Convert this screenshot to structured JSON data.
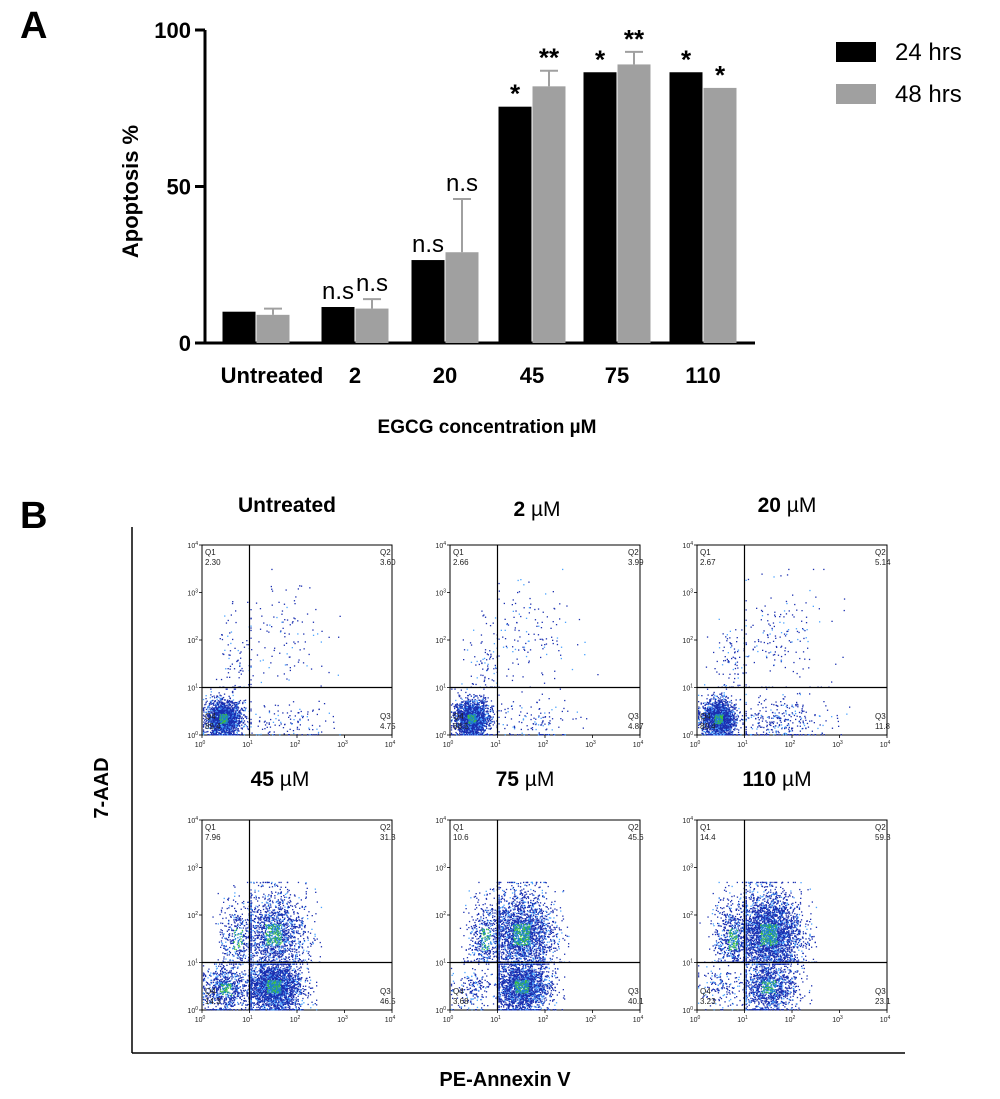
{
  "panels": {
    "a": "A",
    "b": "B"
  },
  "chart_data": [
    {
      "type": "bar",
      "title": "",
      "xlabel": "EGCG concentration µM",
      "ylabel": "Apoptosis %",
      "ylim": [
        0,
        100
      ],
      "yticks": [
        "0",
        "50",
        "100"
      ],
      "categories": [
        "Untreated",
        "2",
        "20",
        "45",
        "75",
        "110"
      ],
      "series": [
        {
          "name": "24 hrs",
          "color": "#000000",
          "values": [
            10,
            11.5,
            26.5,
            75.5,
            86.5,
            86.5
          ],
          "errors": [
            0,
            0,
            0,
            0,
            0,
            0
          ],
          "significance": [
            "",
            "n.s",
            "n.s",
            "*",
            "*",
            "*"
          ]
        },
        {
          "name": "48 hrs",
          "color": "#a0a0a0",
          "values": [
            9,
            11,
            29,
            82,
            89,
            81.5
          ],
          "errors": [
            2,
            3,
            17,
            5,
            4,
            0
          ],
          "significance": [
            "",
            "n.s",
            "n.s",
            "**",
            "**",
            "*"
          ]
        }
      ],
      "legend": "top-right"
    },
    {
      "type": "scatter",
      "xlabel": "PE-Annexin V",
      "ylabel": "7-AAD",
      "scale": "log",
      "axis_ticks": [
        "10",
        "10",
        "10",
        "10",
        "10"
      ],
      "axis_exponents": [
        "0",
        "1",
        "2",
        "3",
        "4"
      ],
      "plots": [
        {
          "title_num": "",
          "title_unit": "",
          "title_full": "Untreated",
          "bold_unit": false,
          "quadrants": {
            "Q1": "2.30",
            "Q2": "3.60",
            "Q3": "4.75",
            "Q4": "89.4"
          }
        },
        {
          "title_num": "2",
          "title_unit": " µM",
          "title_full": "",
          "bold_unit": false,
          "quadrants": {
            "Q1": "2.66",
            "Q2": "3.99",
            "Q3": "4.87",
            "Q4": "88.5"
          }
        },
        {
          "title_num": "20",
          "title_unit": " µM",
          "title_full": "",
          "bold_unit": false,
          "quadrants": {
            "Q1": "2.67",
            "Q2": "5.14",
            "Q3": "11.8",
            "Q4": "80.4"
          }
        },
        {
          "title_num": "45",
          "title_unit": " µM",
          "title_full": "",
          "bold_unit": false,
          "quadrants": {
            "Q1": "7.96",
            "Q2": "31.3",
            "Q3": "46.5",
            "Q4": "14.3"
          }
        },
        {
          "title_num": "75",
          "title_unit": " µM",
          "title_full": "",
          "bold_unit": false,
          "quadrants": {
            "Q1": "10.6",
            "Q2": "45.6",
            "Q3": "40.1",
            "Q4": "3.68"
          }
        },
        {
          "title_num": "110",
          "title_unit": " µM",
          "title_full": "",
          "bold_unit": false,
          "quadrants": {
            "Q1": "14.4",
            "Q2": "59.3",
            "Q3": "23.1",
            "Q4": "3.23"
          }
        }
      ]
    }
  ]
}
